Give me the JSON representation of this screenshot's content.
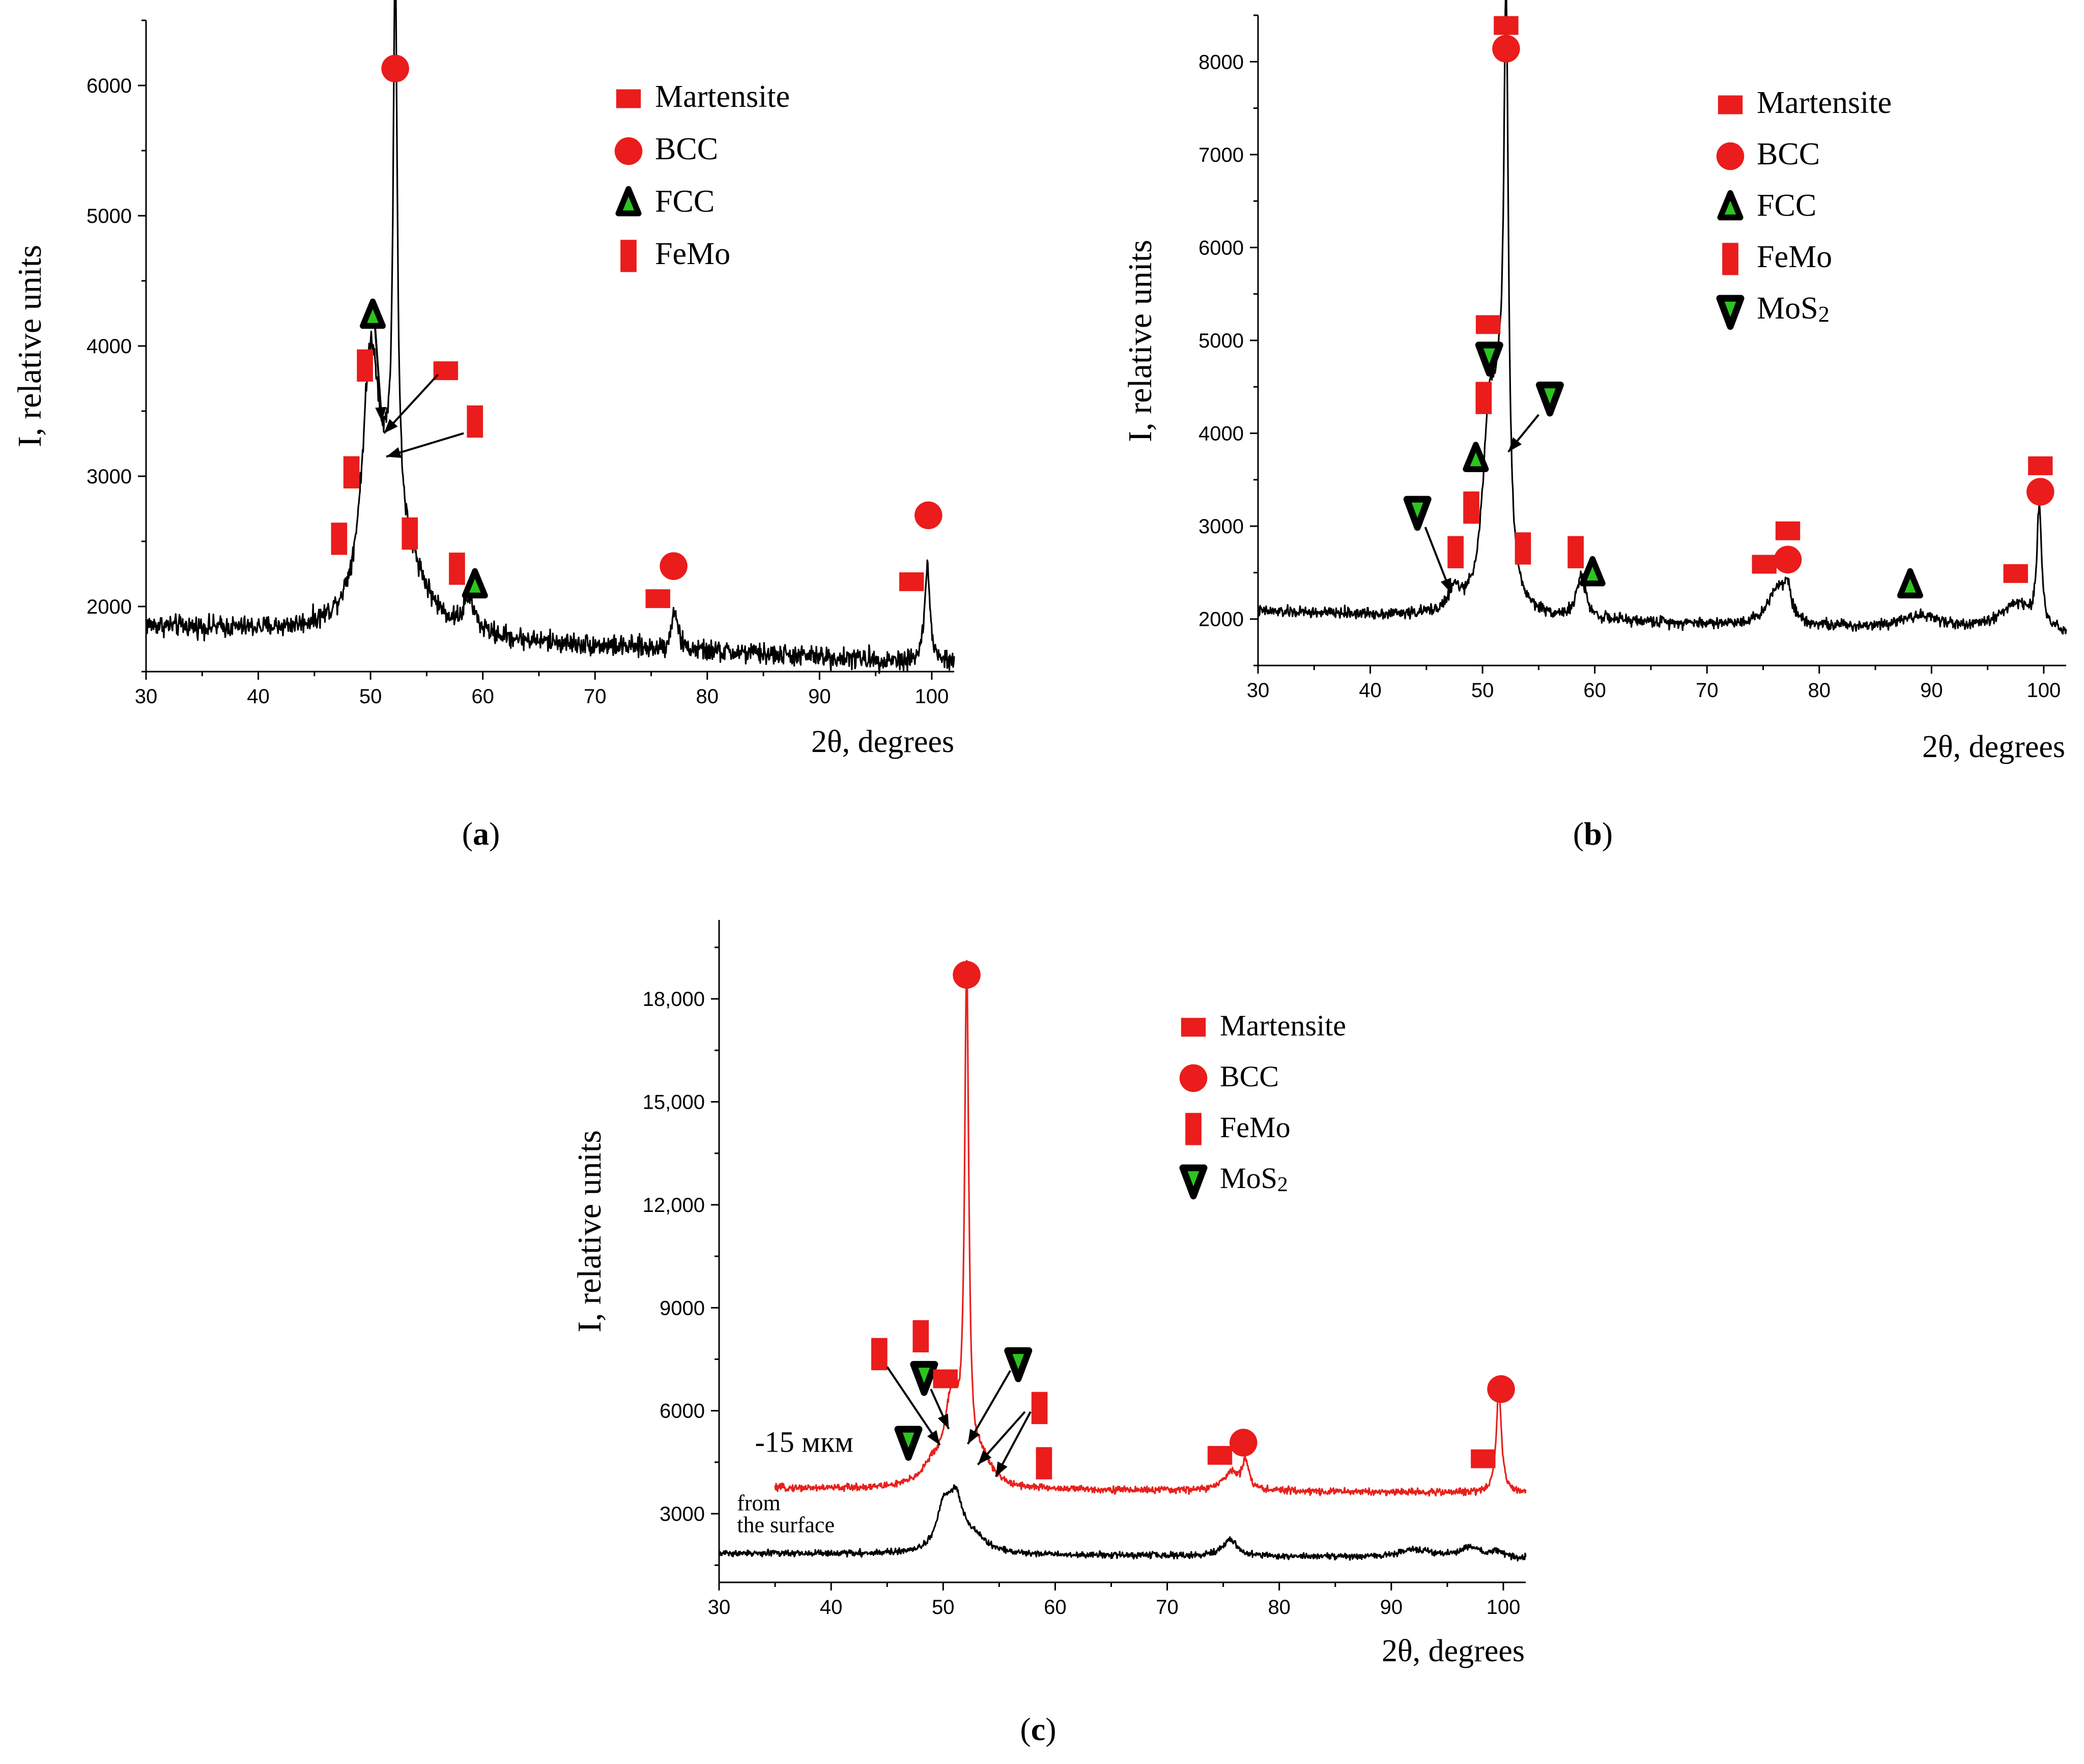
{
  "figure": {
    "panels": [
      {
        "id": "a",
        "caption_letter": "a",
        "title": "",
        "xlabel": "2θ, degrees",
        "ylabel": "I, relative units",
        "xlim": [
          30,
          102
        ],
        "ylim": [
          1500,
          6500
        ],
        "x_ticks": [
          30,
          40,
          50,
          60,
          70,
          80,
          90,
          100
        ],
        "y_ticks": [
          2000,
          3000,
          4000,
          5000,
          6000
        ],
        "y_tick_labels": [
          "2000",
          "3000",
          "4000",
          "5000",
          "6000"
        ],
        "legend": [
          {
            "label": "Martensite",
            "marker": "square"
          },
          {
            "label": "BCC",
            "marker": "circle"
          },
          {
            "label": "FCC",
            "marker": "triangle-up"
          },
          {
            "label": "FeMo",
            "marker": "rect-tall"
          }
        ],
        "series": [
          {
            "name": "pattern",
            "color": "#000000",
            "baseline": 1850,
            "slope": -4,
            "noise": 80,
            "peaks": [
              [
                50.0,
                1800,
                0.9
              ],
              [
                52.2,
                4150,
                0.22
              ],
              [
                51.5,
                700,
                1.5
              ],
              [
                53.5,
                350,
                2.0
              ],
              [
                58.8,
                240,
                0.6
              ],
              [
                77.1,
                330,
                0.3
              ],
              [
                99.6,
                730,
                0.28
              ]
            ]
          }
        ],
        "markers": [
          {
            "type": "circle",
            "x": 52.2,
            "y": 6130
          },
          {
            "type": "triangle-up",
            "x": 50.2,
            "y": 4230
          },
          {
            "type": "rect-tall",
            "x": 49.5,
            "y": 3850
          },
          {
            "type": "square",
            "x": 56.7,
            "y": 3810
          },
          {
            "type": "rect-tall",
            "x": 59.3,
            "y": 3420
          },
          {
            "type": "rect-tall",
            "x": 48.3,
            "y": 3030
          },
          {
            "type": "rect-tall",
            "x": 53.5,
            "y": 2560
          },
          {
            "type": "rect-tall",
            "x": 47.2,
            "y": 2520
          },
          {
            "type": "rect-tall",
            "x": 57.7,
            "y": 2290
          },
          {
            "type": "triangle-up",
            "x": 59.3,
            "y": 2160
          },
          {
            "type": "circle",
            "x": 77.0,
            "y": 2310
          },
          {
            "type": "square",
            "x": 75.6,
            "y": 2060
          },
          {
            "type": "circle",
            "x": 99.7,
            "y": 2700
          },
          {
            "type": "square",
            "x": 98.2,
            "y": 2190
          }
        ],
        "arrows": [
          {
            "from": [
              50.4,
              4150
            ],
            "to": [
              51.0,
              3420
            ]
          },
          {
            "from": [
              56.0,
              3780
            ],
            "to": [
              51.2,
              3330
            ]
          },
          {
            "from": [
              58.3,
              3330
            ],
            "to": [
              51.4,
              3150
            ]
          }
        ],
        "annotations": []
      },
      {
        "id": "b",
        "caption_letter": "b",
        "title": "",
        "xlabel": "2θ, degrees",
        "ylabel": "I, relative units",
        "xlim": [
          30,
          102
        ],
        "ylim": [
          1500,
          8500
        ],
        "x_ticks": [
          30,
          40,
          50,
          60,
          70,
          80,
          90,
          100
        ],
        "y_ticks": [
          2000,
          3000,
          4000,
          5000,
          6000,
          7000,
          8000
        ],
        "y_tick_labels": [
          "2000",
          "3000",
          "4000",
          "5000",
          "6000",
          "7000",
          "8000"
        ],
        "legend": [
          {
            "label": "Martensite",
            "marker": "square"
          },
          {
            "label": "BCC",
            "marker": "circle"
          },
          {
            "label": "FCC",
            "marker": "triangle-up"
          },
          {
            "label": "FeMo",
            "marker": "rect-tall"
          },
          {
            "label": "MoS",
            "sub": "2",
            "marker": "triangle-down"
          }
        ],
        "series": [
          {
            "name": "pattern",
            "color": "#000000",
            "baseline": 2080,
            "slope": -3.5,
            "noise": 60,
            "peaks": [
              [
                52.1,
                5750,
                0.25
              ],
              [
                50.6,
                1900,
                0.7
              ],
              [
                51.5,
                1500,
                0.6
              ],
              [
                47.5,
                230,
                0.6
              ],
              [
                58.8,
                450,
                0.5
              ],
              [
                76.3,
                420,
                1.0
              ],
              [
                77.2,
                300,
                0.3
              ],
              [
                89.0,
                150,
                2.5
              ],
              [
                97.5,
                300,
                1.8
              ],
              [
                99.6,
                1250,
                0.25
              ]
            ]
          }
        ],
        "markers": [
          {
            "type": "square",
            "x": 52.1,
            "y": 8390
          },
          {
            "type": "circle",
            "x": 52.1,
            "y": 8140
          },
          {
            "type": "square",
            "x": 50.5,
            "y": 5170
          },
          {
            "type": "triangle-down",
            "x": 50.6,
            "y": 4820
          },
          {
            "type": "triangle-down",
            "x": 56.0,
            "y": 4390
          },
          {
            "type": "rect-tall",
            "x": 50.1,
            "y": 4380
          },
          {
            "type": "triangle-up",
            "x": 49.4,
            "y": 3720
          },
          {
            "type": "rect-tall",
            "x": 49.0,
            "y": 3200
          },
          {
            "type": "triangle-down",
            "x": 44.2,
            "y": 3160
          },
          {
            "type": "rect-tall",
            "x": 47.6,
            "y": 2720
          },
          {
            "type": "rect-tall",
            "x": 53.6,
            "y": 2760
          },
          {
            "type": "rect-tall",
            "x": 58.3,
            "y": 2720
          },
          {
            "type": "triangle-up",
            "x": 59.8,
            "y": 2490
          },
          {
            "type": "square",
            "x": 77.2,
            "y": 2950
          },
          {
            "type": "circle",
            "x": 77.2,
            "y": 2640
          },
          {
            "type": "square",
            "x": 75.1,
            "y": 2590
          },
          {
            "type": "triangle-up",
            "x": 88.1,
            "y": 2360
          },
          {
            "type": "square",
            "x": 99.7,
            "y": 3650
          },
          {
            "type": "circle",
            "x": 99.7,
            "y": 3370
          },
          {
            "type": "square",
            "x": 97.5,
            "y": 2490
          }
        ],
        "arrows": [
          {
            "from": [
              44.9,
              2990
            ],
            "to": [
              47.2,
              2280
            ]
          },
          {
            "from": [
              55.0,
              4200
            ],
            "to": [
              52.3,
              3800
            ]
          }
        ],
        "annotations": []
      },
      {
        "id": "c",
        "caption_letter": "c",
        "title": "",
        "xlabel": "2θ, degrees",
        "ylabel": "I, relative units",
        "xlim": [
          30,
          102
        ],
        "ylim": [
          1000,
          20300
        ],
        "x_ticks": [
          30,
          40,
          50,
          60,
          70,
          80,
          90,
          100
        ],
        "y_ticks": [
          3000,
          6000,
          9000,
          12000,
          15000,
          18000
        ],
        "y_tick_labels": [
          "3000",
          "6000",
          "9000",
          "12,000",
          "15,000",
          "18,000"
        ],
        "legend": [
          {
            "label": "Martensite",
            "marker": "square"
          },
          {
            "label": "BCC",
            "marker": "circle"
          },
          {
            "label": "FeMo",
            "marker": "rect-tall"
          },
          {
            "label": "MoS",
            "sub": "2",
            "marker": "triangle-down"
          }
        ],
        "series": [
          {
            "name": "-15 мкм",
            "color": "#e8201c",
            "x_start": 35,
            "baseline": 3750,
            "slope": -2,
            "noise": 100,
            "peaks": [
              [
                52.1,
                14400,
                0.22
              ],
              [
                50.8,
                2500,
                0.8
              ],
              [
                53.5,
                700,
                1.0
              ],
              [
                49.0,
                500,
                1.2
              ],
              [
                75.8,
                550,
                0.9
              ],
              [
                77.0,
                800,
                0.3
              ],
              [
                99.6,
                3000,
                0.28
              ]
            ]
          },
          {
            "name": "from the surface",
            "color": "#000000",
            "x_start": 30,
            "baseline": 1850,
            "slope": -2,
            "noise": 90,
            "peaks": [
              [
                50.0,
                1100,
                0.7
              ],
              [
                51.1,
                1500,
                0.8
              ],
              [
                52.8,
                400,
                1.3
              ],
              [
                75.6,
                500,
                0.7
              ],
              [
                92.0,
                220,
                1.5
              ],
              [
                97.0,
                300,
                1.2
              ],
              [
                99.5,
                180,
                0.5
              ]
            ]
          }
        ],
        "markers": [
          {
            "type": "circle",
            "x": 52.1,
            "y": 18700
          },
          {
            "type": "rect-tall",
            "x": 48.0,
            "y": 8170
          },
          {
            "type": "rect-tall",
            "x": 44.3,
            "y": 7650
          },
          {
            "type": "triangle-down",
            "x": 56.7,
            "y": 7400
          },
          {
            "type": "triangle-down",
            "x": 48.3,
            "y": 7000
          },
          {
            "type": "square",
            "x": 50.2,
            "y": 6930
          },
          {
            "type": "rect-tall",
            "x": 58.6,
            "y": 6080
          },
          {
            "type": "triangle-down",
            "x": 46.9,
            "y": 5110
          },
          {
            "type": "rect-tall",
            "x": 59.0,
            "y": 4470
          },
          {
            "type": "square",
            "x": 74.7,
            "y": 4700
          },
          {
            "type": "circle",
            "x": 76.8,
            "y": 5070
          },
          {
            "type": "circle",
            "x": 99.8,
            "y": 6630
          },
          {
            "type": "square",
            "x": 98.2,
            "y": 4600
          }
        ],
        "arrows": [
          {
            "from": [
              45.0,
              7280
            ],
            "to": [
              49.7,
              5000
            ]
          },
          {
            "from": [
              48.9,
              6630
            ],
            "to": [
              50.5,
              5470
            ]
          },
          {
            "from": [
              56.0,
              7170
            ],
            "to": [
              52.2,
              5030
            ]
          },
          {
            "from": [
              57.3,
              5970
            ],
            "to": [
              53.1,
              4430
            ]
          },
          {
            "from": [
              57.8,
              5970
            ],
            "to": [
              54.7,
              4080
            ]
          }
        ],
        "annotations": [
          {
            "text": "-15 мкм",
            "x": 33.2,
            "y": 4800,
            "size": 58
          },
          {
            "text": "from",
            "x": 31.6,
            "y": 3100,
            "size": 44
          },
          {
            "text": "the surface",
            "x": 31.6,
            "y": 2460,
            "size": 44
          }
        ]
      }
    ]
  }
}
